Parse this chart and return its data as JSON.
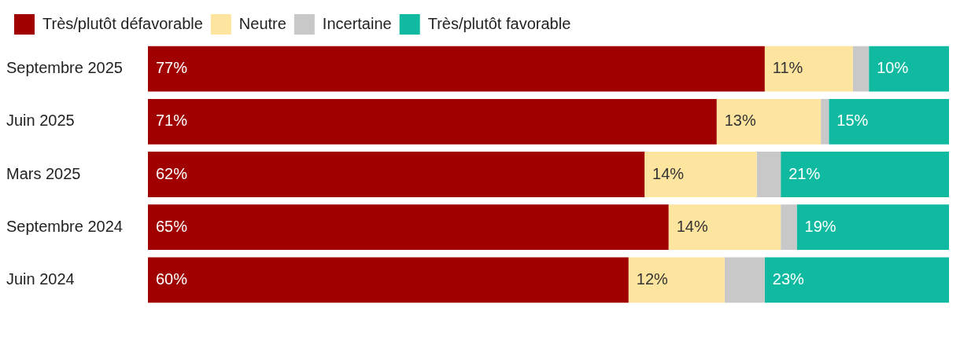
{
  "chart_data": {
    "type": "bar",
    "orientation": "horizontal",
    "stacked": true,
    "legend": "top left",
    "grid": false,
    "categories": [
      "Septembre 2025",
      "Juin 2025",
      "Mars 2025",
      "Septembre 2024",
      "Juin 2024"
    ],
    "xlim": [
      0,
      100
    ],
    "series": [
      {
        "name": "Très/plutôt défavorable",
        "color": "#a00000",
        "values": [
          77,
          71,
          62,
          65,
          60
        ],
        "value_labels": [
          "77%",
          "71%",
          "62%",
          "65%",
          "60%"
        ]
      },
      {
        "name": "Neutre",
        "color": "#fde49f",
        "values": [
          11,
          13,
          14,
          14,
          12
        ],
        "value_labels": [
          "11%",
          "13%",
          "14%",
          "14%",
          "12%"
        ]
      },
      {
        "name": "Incertaine",
        "color": "#c8c8c8",
        "values": [
          2,
          1,
          3,
          2,
          5
        ],
        "value_labels": [
          null,
          null,
          null,
          null,
          null
        ]
      },
      {
        "name": "Très/plutôt favorable",
        "color": "#0fbaa0",
        "values": [
          10,
          15,
          21,
          19,
          23
        ],
        "value_labels": [
          "10%",
          "15%",
          "21%",
          "19%",
          "23%"
        ]
      }
    ]
  }
}
